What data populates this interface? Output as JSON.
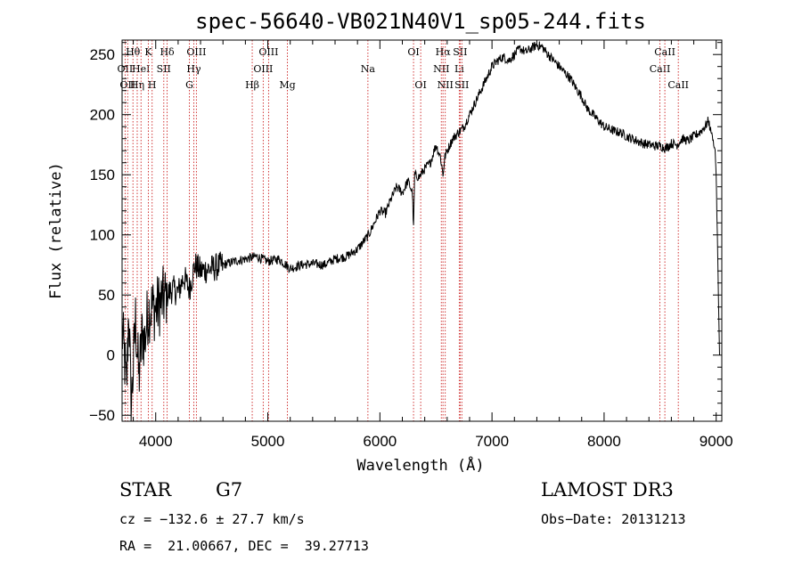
{
  "chart_data": {
    "type": "line",
    "title": "spec-56640-VB021N40V1_sp05-244.fits",
    "xlabel": "Wavelength (Å)",
    "ylabel": "Flux (relative)",
    "xlim": [
      3700,
      9050
    ],
    "ylim": [
      -55,
      262
    ],
    "x_ticks": [
      4000,
      5000,
      6000,
      7000,
      8000,
      9000
    ],
    "y_ticks": [
      -50,
      0,
      50,
      100,
      150,
      200,
      250
    ],
    "grid": false,
    "series": [
      {
        "name": "spectrum",
        "x": [
          3700,
          3720,
          3740,
          3760,
          3780,
          3800,
          3820,
          3850,
          3880,
          3900,
          3930,
          3960,
          4000,
          4050,
          4100,
          4150,
          4200,
          4250,
          4300,
          4350,
          4400,
          4500,
          4600,
          4700,
          4800,
          4900,
          5000,
          5100,
          5200,
          5300,
          5400,
          5500,
          5600,
          5700,
          5800,
          5900,
          5950,
          6000,
          6050,
          6100,
          6150,
          6200,
          6250,
          6290,
          6300,
          6310,
          6350,
          6400,
          6450,
          6500,
          6540,
          6563,
          6580,
          6600,
          6650,
          6700,
          6750,
          6800,
          6850,
          6900,
          6950,
          7000,
          7050,
          7100,
          7150,
          7200,
          7250,
          7300,
          7350,
          7400,
          7450,
          7500,
          7550,
          7600,
          7650,
          7700,
          7750,
          7800,
          7850,
          7900,
          7950,
          8000,
          8050,
          8100,
          8150,
          8200,
          8250,
          8300,
          8350,
          8400,
          8450,
          8500,
          8550,
          8600,
          8650,
          8700,
          8750,
          8800,
          8850,
          8900,
          8930,
          8950,
          8970,
          8990,
          9000,
          9010,
          9020,
          9030
        ],
        "y": [
          20,
          0,
          -30,
          40,
          -45,
          -10,
          30,
          -20,
          20,
          10,
          35,
          40,
          38,
          45,
          50,
          55,
          52,
          65,
          55,
          75,
          70,
          72,
          75,
          78,
          80,
          82,
          78,
          80,
          72,
          75,
          76,
          75,
          80,
          82,
          88,
          100,
          110,
          120,
          118,
          130,
          140,
          135,
          145,
          135,
          105,
          150,
          148,
          155,
          160,
          175,
          165,
          150,
          165,
          170,
          180,
          185,
          190,
          200,
          210,
          220,
          230,
          240,
          245,
          248,
          245,
          250,
          255,
          252,
          255,
          258,
          256,
          250,
          245,
          240,
          235,
          230,
          222,
          215,
          205,
          200,
          195,
          190,
          188,
          186,
          185,
          182,
          180,
          178,
          176,
          175,
          174,
          174,
          172,
          176,
          175,
          180,
          178,
          182,
          185,
          190,
          195,
          188,
          180,
          170,
          150,
          100,
          50,
          0
        ]
      }
    ],
    "spectral_lines": [
      {
        "wl": 3727,
        "label": "OII",
        "row": 2
      },
      {
        "wl": 3750,
        "label": "OII",
        "row": 3
      },
      {
        "wl": 3797,
        "label": "Hθ",
        "row": 1
      },
      {
        "wl": 3835,
        "label": "Hη",
        "row": 3
      },
      {
        "wl": 3869,
        "label": "HeI",
        "row": 2
      },
      {
        "wl": 3934,
        "label": "K",
        "row": 1
      },
      {
        "wl": 3968,
        "label": "H",
        "row": 3
      },
      {
        "wl": 4072,
        "label": "SII",
        "row": 2
      },
      {
        "wl": 4102,
        "label": "Hδ",
        "row": 1
      },
      {
        "wl": 4300,
        "label": "G",
        "row": 3
      },
      {
        "wl": 4340,
        "label": "Hγ",
        "row": 2
      },
      {
        "wl": 4363,
        "label": "OIII",
        "row": 1
      },
      {
        "wl": 4861,
        "label": "Hβ",
        "row": 3
      },
      {
        "wl": 4959,
        "label": "OIII",
        "row": 2
      },
      {
        "wl": 5007,
        "label": "OIII",
        "row": 1
      },
      {
        "wl": 5175,
        "label": "Mg",
        "row": 3
      },
      {
        "wl": 5893,
        "label": "Na",
        "row": 2
      },
      {
        "wl": 6300,
        "label": "OI",
        "row": 1
      },
      {
        "wl": 6364,
        "label": "OI",
        "row": 3
      },
      {
        "wl": 6548,
        "label": "NII",
        "row": 2
      },
      {
        "wl": 6563,
        "label": "Hα",
        "row": 1
      },
      {
        "wl": 6583,
        "label": "NII",
        "row": 3
      },
      {
        "wl": 6708,
        "label": "Li",
        "row": 2
      },
      {
        "wl": 6716,
        "label": "SII",
        "row": 1
      },
      {
        "wl": 6731,
        "label": "SII",
        "row": 3
      },
      {
        "wl": 8498,
        "label": "CaII",
        "row": 2
      },
      {
        "wl": 8542,
        "label": "CaII",
        "row": 1
      },
      {
        "wl": 8662,
        "label": "CaII",
        "row": 3
      }
    ]
  },
  "info": {
    "class_label": "STAR",
    "subclass": "G7",
    "survey": "LAMOST DR3",
    "cz": "cz = −132.6 ± 27.7 km/s",
    "obs_date": "Obs−Date: 20131213",
    "coords": "RA =  21.00667, DEC =  39.27713"
  }
}
